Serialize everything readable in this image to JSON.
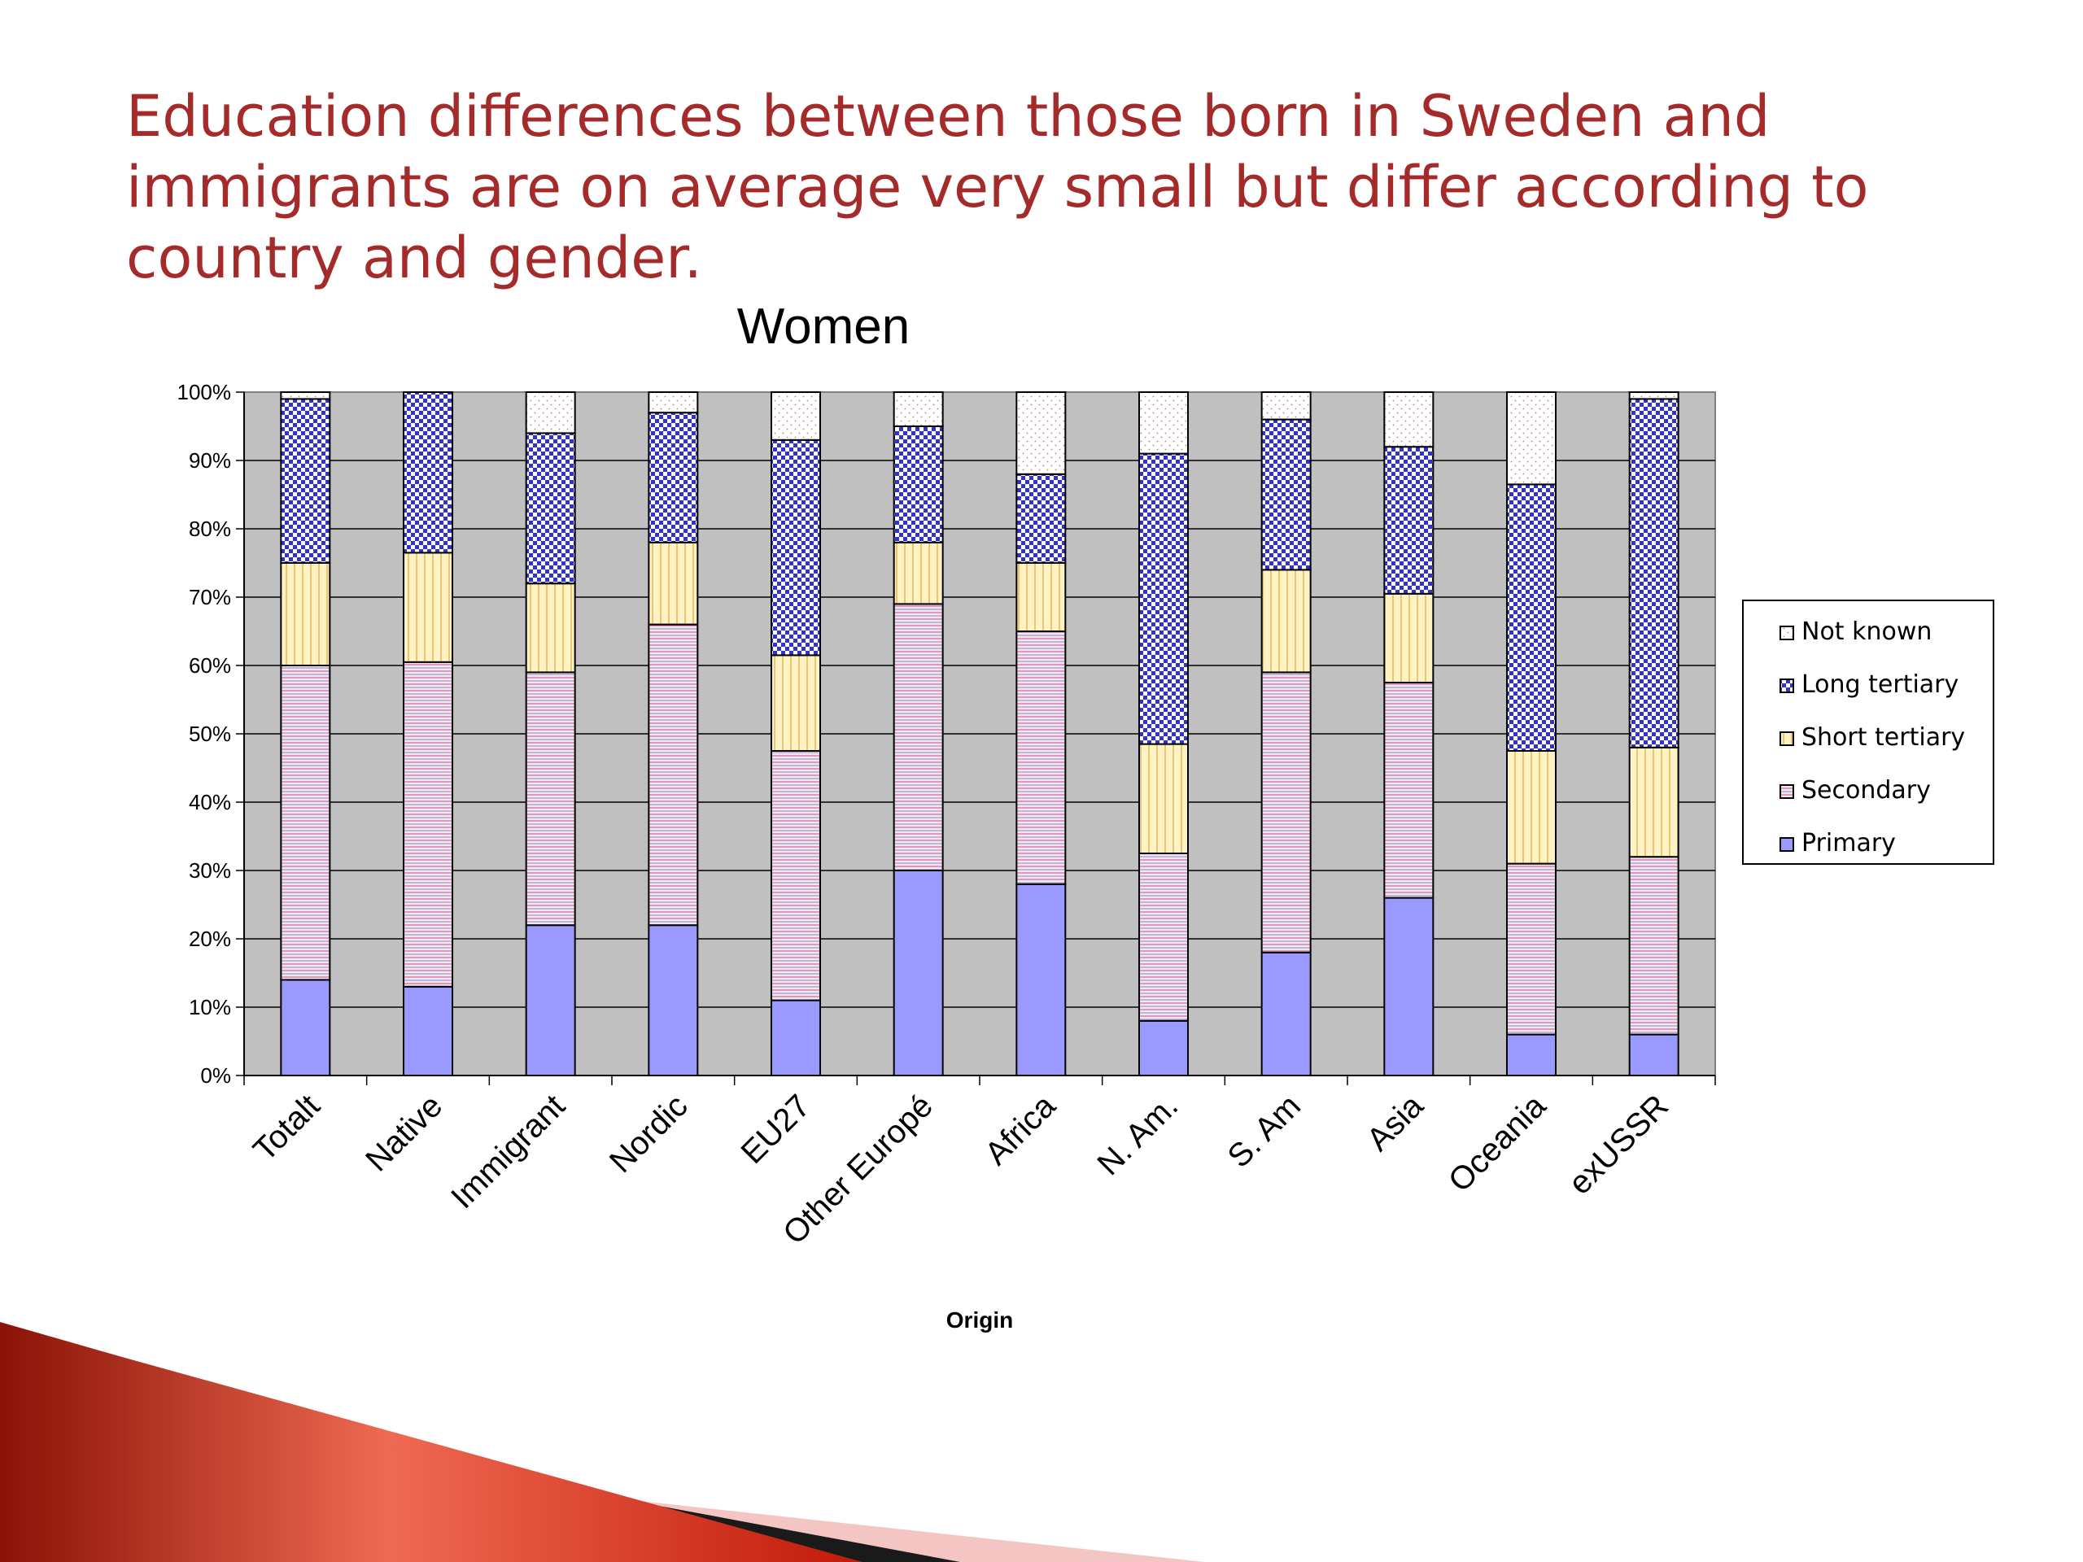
{
  "slide": {
    "title": "Education differences between those born in Sweden and immigrants are on average very small but differ according to country and gender."
  },
  "colors": {
    "plot_background": "#c0c0c0",
    "title_color": "#a52a2a",
    "primary": "#9999ff",
    "secondary": "#f3e6ee",
    "short_tertiary": "#fff2c4",
    "long_tertiary": "#3333cc",
    "not_known": "#ffffff",
    "swoosh_dark": "#b71c0c",
    "swoosh_light": "#f4c6c3"
  },
  "chart_data": {
    "type": "bar",
    "stacked": true,
    "title": "Women",
    "xlabel": "Origin",
    "ylabel": "",
    "ylim": [
      0,
      100
    ],
    "y_tick_values": [
      0,
      10,
      20,
      30,
      40,
      50,
      60,
      70,
      80,
      90,
      100
    ],
    "y_tick_labels": [
      "0%",
      "10%",
      "20%",
      "30%",
      "40%",
      "50%",
      "60%",
      "70%",
      "80%",
      "90%",
      "100%"
    ],
    "grid": true,
    "legend_position": "right",
    "categories": [
      "Totalt",
      "Native",
      "Immigrant",
      "Nordic",
      "EU27",
      "Other Europé",
      "Africa",
      "N. Am.",
      "S. Am",
      "Asia",
      "Oceania",
      "exUSSR"
    ],
    "series": [
      {
        "name": "Primary",
        "pattern": "solid",
        "values": [
          14,
          13,
          22,
          22,
          11,
          30,
          28,
          8,
          18,
          26,
          6,
          6
        ]
      },
      {
        "name": "Secondary",
        "pattern": "horizontal-lines",
        "values": [
          46,
          47.5,
          37,
          44,
          36.5,
          39,
          37,
          24.5,
          41,
          31.5,
          25,
          26
        ]
      },
      {
        "name": "Short tertiary",
        "pattern": "vertical-lines",
        "values": [
          15,
          16,
          13,
          12,
          14,
          9,
          10,
          16,
          15,
          13,
          16.5,
          16
        ]
      },
      {
        "name": "Long tertiary",
        "pattern": "checker",
        "values": [
          24,
          23.5,
          22,
          19,
          31.5,
          17,
          13,
          42.5,
          22,
          21.5,
          39,
          51
        ]
      },
      {
        "name": "Not known",
        "pattern": "dots",
        "values": [
          1,
          0,
          6,
          3,
          7,
          5,
          12,
          9,
          4,
          8,
          13.5,
          1
        ]
      }
    ],
    "legend_order": [
      "Not known",
      "Long tertiary",
      "Short tertiary",
      "Secondary",
      "Primary"
    ]
  }
}
